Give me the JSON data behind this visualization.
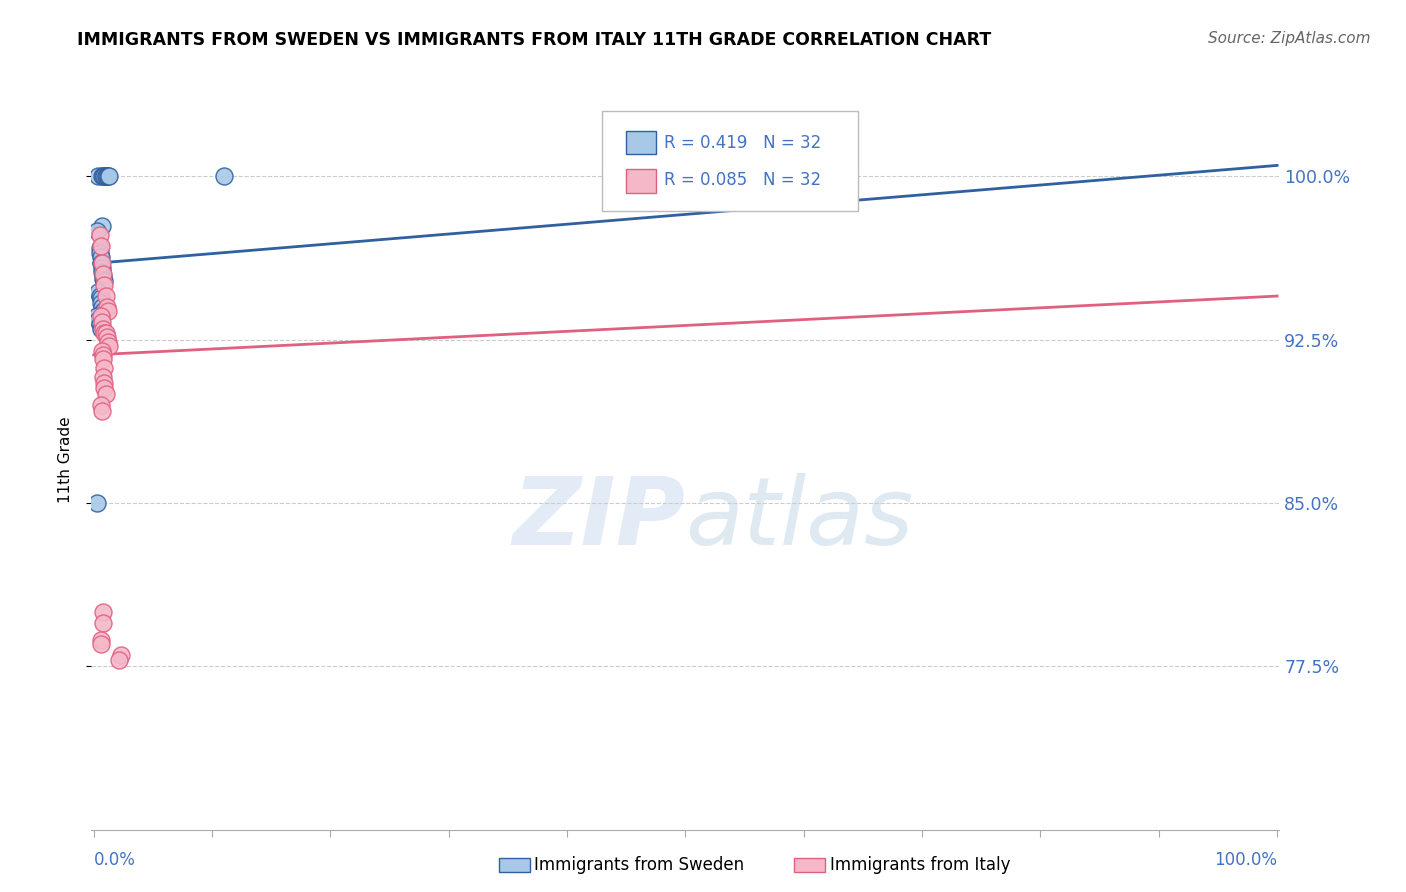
{
  "title": "IMMIGRANTS FROM SWEDEN VS IMMIGRANTS FROM ITALY 11TH GRADE CORRELATION CHART",
  "source": "Source: ZipAtlas.com",
  "ylabel": "11th Grade",
  "legend_r_sweden": "0.419",
  "legend_n_sweden": "32",
  "legend_r_italy": "0.085",
  "legend_n_italy": "32",
  "color_sweden": "#a8c8e8",
  "color_italy": "#f5b8c8",
  "color_sweden_line": "#3060a0",
  "color_italy_line": "#e06080",
  "color_axis_labels": "#4472c4",
  "yticklabels": [
    "77.5%",
    "85.0%",
    "92.5%",
    "100.0%"
  ],
  "yticks": [
    0.775,
    0.85,
    0.925,
    1.0
  ],
  "ylim": [
    0.7,
    1.04
  ],
  "xlim": [
    -0.002,
    1.002
  ],
  "sweden_x": [
    0.004,
    0.007,
    0.008,
    0.009,
    0.01,
    0.01,
    0.011,
    0.012,
    0.013,
    0.007,
    0.003,
    0.005,
    0.005,
    0.006,
    0.006,
    0.007,
    0.007,
    0.008,
    0.008,
    0.009,
    0.004,
    0.005,
    0.006,
    0.006,
    0.007,
    0.008,
    0.003,
    0.004,
    0.005,
    0.006,
    0.11,
    0.003
  ],
  "sweden_y": [
    1.0,
    1.0,
    1.0,
    1.0,
    1.0,
    1.0,
    1.0,
    1.0,
    1.0,
    0.977,
    0.975,
    0.967,
    0.965,
    0.963,
    0.96,
    0.958,
    0.956,
    0.954,
    0.953,
    0.952,
    0.947,
    0.945,
    0.944,
    0.942,
    0.94,
    0.938,
    0.936,
    0.934,
    0.932,
    0.93,
    1.0,
    0.85
  ],
  "italy_x": [
    0.005,
    0.006,
    0.007,
    0.008,
    0.009,
    0.01,
    0.011,
    0.012,
    0.006,
    0.007,
    0.008,
    0.009,
    0.01,
    0.011,
    0.012,
    0.013,
    0.007,
    0.008,
    0.008,
    0.009,
    0.008,
    0.009,
    0.009,
    0.01,
    0.006,
    0.007,
    0.008,
    0.008,
    0.006,
    0.006,
    0.023,
    0.021
  ],
  "italy_y": [
    0.973,
    0.968,
    0.96,
    0.955,
    0.95,
    0.945,
    0.94,
    0.938,
    0.936,
    0.933,
    0.93,
    0.928,
    0.928,
    0.926,
    0.924,
    0.922,
    0.92,
    0.918,
    0.916,
    0.912,
    0.908,
    0.905,
    0.903,
    0.9,
    0.895,
    0.892,
    0.8,
    0.795,
    0.787,
    0.785,
    0.78,
    0.778
  ],
  "sweden_line_x0": 0.0,
  "sweden_line_x1": 1.0,
  "sweden_line_y0": 0.96,
  "sweden_line_y1": 1.005,
  "italy_line_x0": 0.0,
  "italy_line_x1": 1.0,
  "italy_line_y0": 0.918,
  "italy_line_y1": 0.945,
  "grid_color": "#cccccc",
  "background_color": "#ffffff"
}
